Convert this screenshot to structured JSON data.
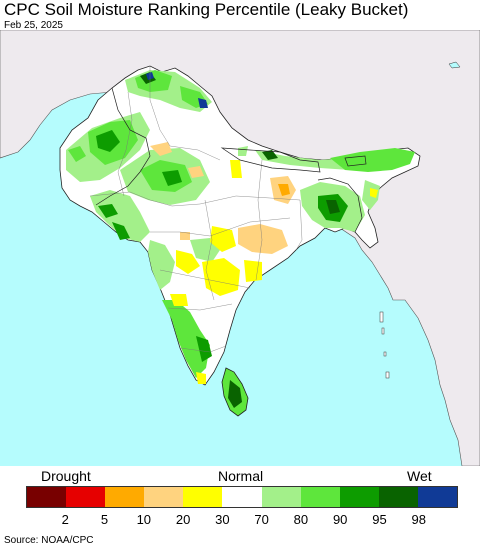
{
  "title": "CPC Soil Moisture Ranking Percentile (Leaky Bucket)",
  "date": "Feb 25, 2025",
  "legend": {
    "left_label": "Drought",
    "center_label": "Normal",
    "right_label": "Wet",
    "colors": [
      "#780000",
      "#e60000",
      "#ffaa00",
      "#ffd37f",
      "#ffff00",
      "#ffffff",
      "#a3f08a",
      "#5ee63c",
      "#0d9c00",
      "#096300",
      "#103a96"
    ],
    "ticks": [
      "2",
      "5",
      "10",
      "20",
      "30",
      "70",
      "80",
      "90",
      "95",
      "98"
    ]
  },
  "source": "Source: NOAA/CPC",
  "map_colors": {
    "ocean": "#b5fcfd",
    "foreign_land": "#eeeaee",
    "normal": "#ffffff",
    "border": "#000000"
  }
}
